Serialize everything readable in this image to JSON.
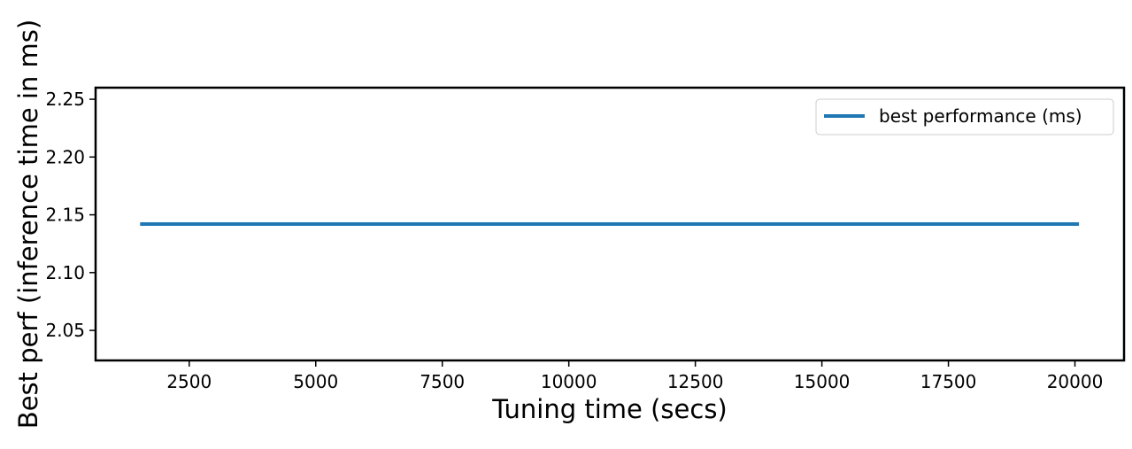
{
  "chart_data": {
    "type": "line",
    "title": "",
    "xlabel": "Tuning time (secs)",
    "ylabel": "Best perf (inference time in ms)",
    "xlim": [
      650,
      20970
    ],
    "ylim": [
      2.024,
      2.26
    ],
    "xticks": [
      2500,
      5000,
      7500,
      10000,
      12500,
      15000,
      17500,
      20000
    ],
    "yticks": [
      2.05,
      2.1,
      2.15,
      2.2,
      2.25
    ],
    "xtick_labels": [
      "2500",
      "5000",
      "7500",
      "10000",
      "12500",
      "15000",
      "17500",
      "20000"
    ],
    "ytick_labels": [
      "2.05",
      "2.10",
      "2.15",
      "2.20",
      "2.25"
    ],
    "grid": false,
    "legend": {
      "placement": "top-right"
    },
    "series": [
      {
        "name": "best performance (ms)",
        "color": "#1f77b4",
        "x": [
          1530,
          20080
        ],
        "y": [
          2.142,
          2.142
        ]
      }
    ]
  }
}
